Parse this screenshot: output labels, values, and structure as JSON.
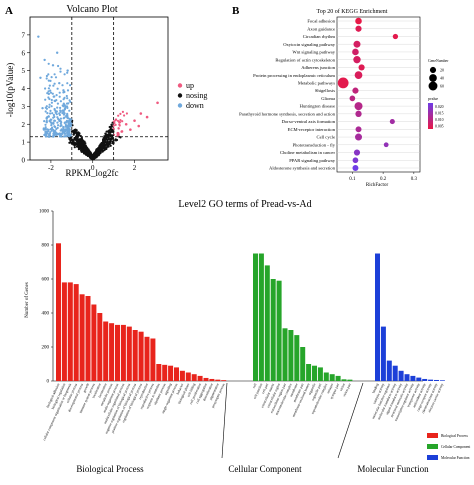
{
  "panels": {
    "a": "A",
    "b": "B",
    "c": "C"
  },
  "chart_data": [
    {
      "type": "scatter",
      "title": "Volcano Plot",
      "xlabel": "RPKM_log2fc",
      "ylabel": "-log10(pValue)",
      "xlim": [
        -3,
        3.6
      ],
      "ylim": [
        0,
        8
      ],
      "x_ticks": [
        "-2",
        "0",
        "2"
      ],
      "y_ticks": [
        "0",
        "1",
        "2",
        "3",
        "4",
        "5",
        "6",
        "7"
      ],
      "thresholds": {
        "x": [
          -1,
          1
        ],
        "y": 1.3
      },
      "legend": {
        "position": "right",
        "entries": [
          {
            "label": "up",
            "color": "#ef5a80"
          },
          {
            "label": "nosing",
            "color": "#111111"
          },
          {
            "label": "down",
            "color": "#6fa8dc"
          }
        ]
      },
      "highlight_points": {
        "up": [
          [
            1.6,
            2.0
          ],
          [
            2.0,
            2.2
          ],
          [
            2.3,
            2.6
          ],
          [
            1.4,
            1.6
          ],
          [
            1.8,
            1.7
          ],
          [
            2.6,
            2.4
          ],
          [
            3.1,
            3.2
          ],
          [
            1.2,
            1.5
          ],
          [
            2.2,
            1.9
          ]
        ],
        "down": [
          [
            -2.6,
            6.9
          ],
          [
            -1.7,
            6.0
          ],
          [
            -2.3,
            5.6
          ],
          [
            -1.9,
            5.3
          ],
          [
            -1.2,
            5.0
          ],
          [
            -2.5,
            4.6
          ],
          [
            -1.6,
            4.3
          ],
          [
            -1.4,
            3.9
          ],
          [
            -2.1,
            3.7
          ],
          [
            -1.8,
            3.3
          ],
          [
            -1.3,
            3.0
          ],
          [
            -2.4,
            2.9
          ],
          [
            -1.6,
            2.6
          ],
          [
            -1.1,
            2.3
          ],
          [
            -2.0,
            2.1
          ],
          [
            -1.4,
            1.8
          ],
          [
            -1.2,
            1.5
          ],
          [
            -1.8,
            1.5
          ]
        ]
      }
    },
    {
      "type": "scatter",
      "title": "Top 20 of KEGG Enrichment",
      "xlabel": "RichFactor",
      "x_ticks": [
        "0.1",
        "0.2",
        "0.3"
      ],
      "xlim": [
        0.05,
        0.32
      ],
      "categories": [
        "Focal adhesion",
        "Axon guidance",
        "Circadian rhythm",
        "Oxytocin signaling pathway",
        "Wnt signaling pathway",
        "Regulation of actin cytoskeleton",
        "Adherens junction",
        "Protein processing in endoplasmic reticulum",
        "Metabolic pathways",
        "Shigellosis",
        "Glioma",
        "Huntington disease",
        "Parathyroid hormone synthesis, secretion and action",
        "Dorso-ventral axis formation",
        "ECM-receptor interaction",
        "Cell cycle",
        "Phototransduction - fly",
        "Choline metabolism in cancer",
        "PPAR signaling pathway",
        "Aldosterone synthesis and secretion"
      ],
      "rich_factor": [
        0.12,
        0.12,
        0.24,
        0.115,
        0.11,
        0.115,
        0.13,
        0.12,
        0.07,
        0.11,
        0.1,
        0.12,
        0.12,
        0.23,
        0.12,
        0.12,
        0.21,
        0.115,
        0.11,
        0.11
      ],
      "gene_number": [
        25,
        20,
        12,
        30,
        25,
        35,
        20,
        40,
        100,
        20,
        15,
        45,
        22,
        10,
        18,
        30,
        8,
        20,
        15,
        18
      ],
      "pvalue": [
        0.001,
        0.003,
        0.002,
        0.005,
        0.006,
        0.005,
        0.003,
        0.004,
        0.002,
        0.009,
        0.01,
        0.011,
        0.012,
        0.015,
        0.013,
        0.014,
        0.018,
        0.02,
        0.022,
        0.025
      ],
      "legend_size": {
        "title": "GeneNumber",
        "entries": [
          "20",
          "40",
          "60"
        ]
      },
      "legend_color": {
        "title": "pvalue",
        "entries": [
          "0.020",
          "0.015",
          "0.010",
          "0.005"
        ]
      }
    },
    {
      "type": "bar",
      "title": "Level2 GO terms of Pread-vs-Ad",
      "ylabel": "Number of Genes",
      "ylim": [
        0,
        1000
      ],
      "y_ticks": [
        "0",
        "200",
        "400",
        "600",
        "800",
        "1000"
      ],
      "groups": [
        {
          "name": "Biological Process",
          "color": "#e8241c",
          "categories": [
            "biological adhesion",
            "biological regulation",
            "cellular component organization or biogenesis",
            "cellular process",
            "developmental process",
            "growth",
            "immune system process",
            "localization",
            "locomotion",
            "metabolic process",
            "multi-organism process",
            "multicellular organismal process",
            "negative regulation of biological process",
            "positive regulation of biological process",
            "regulation of biological process",
            "reproduction",
            "reproductive process",
            "response to stimulus",
            "rhythmic process",
            "signaling",
            "single-organism process",
            "behavior",
            "biological phase",
            "cell killing",
            "cell proliferation",
            "cell aggregation",
            "detoxification",
            "pigmentation",
            "presynaptic process"
          ],
          "values": [
            810,
            580,
            580,
            570,
            510,
            500,
            450,
            400,
            350,
            340,
            330,
            330,
            320,
            300,
            290,
            260,
            250,
            100,
            95,
            90,
            80,
            60,
            50,
            40,
            30,
            18,
            12,
            8,
            5
          ]
        },
        {
          "name": "Cellular Component",
          "color": "#26a52a",
          "categories": [
            "cell",
            "cell junction",
            "cell part",
            "extracellular matrix",
            "extracellular region",
            "extracellular region part",
            "macromolecular complex",
            "membrane",
            "membrane part",
            "membrane-enclosed lumen",
            "organelle",
            "organelle part",
            "supramolecular complex",
            "synapse",
            "synapse part",
            "virion",
            "virion part"
          ],
          "values": [
            750,
            750,
            680,
            600,
            590,
            310,
            300,
            270,
            200,
            100,
            90,
            80,
            50,
            40,
            30,
            10,
            8
          ]
        },
        {
          "name": "Molecular Function",
          "color": "#1c3fd8",
          "categories": [
            "binding",
            "catalytic activity",
            "molecular function regulator",
            "molecular transducer activity",
            "signal transducer activity",
            "structural molecule activity",
            "transcription regulator activity",
            "transporter activity",
            "antioxidant activity",
            "cargo receptor activity",
            "chemoattractant activity",
            "electron carrier activity"
          ],
          "values": [
            750,
            320,
            120,
            90,
            60,
            40,
            30,
            20,
            12,
            8,
            6,
            4
          ]
        }
      ],
      "legend": {
        "position": "bottom-right",
        "entries": [
          "Biological Process",
          "Cellular Component",
          "Molecular Function"
        ]
      }
    }
  ]
}
